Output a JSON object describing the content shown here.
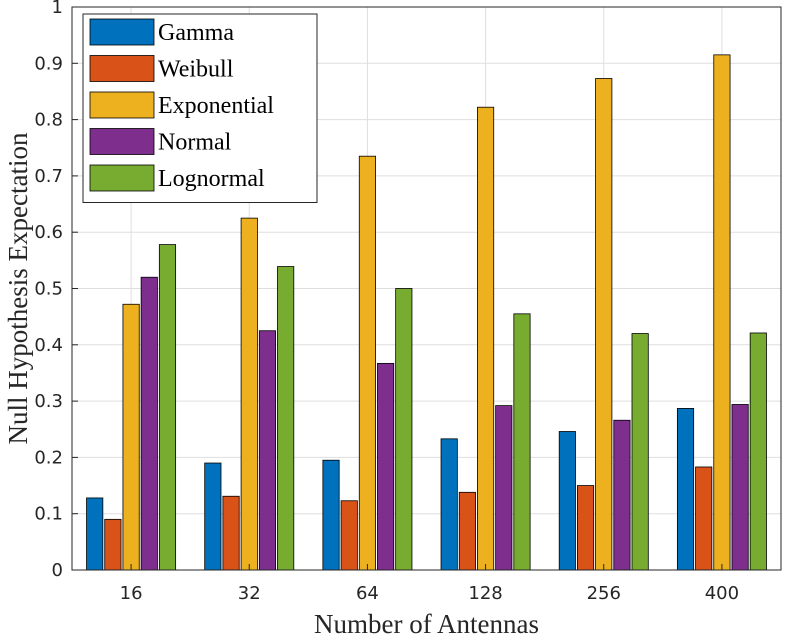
{
  "chart_data": {
    "type": "bar",
    "title": "",
    "xlabel": "Number of Antennas",
    "ylabel": "Null Hypothesis Expectation",
    "ylim": [
      0,
      1
    ],
    "yticks": [
      "0",
      "0.1",
      "0.2",
      "0.3",
      "0.4",
      "0.5",
      "0.6",
      "0.7",
      "0.8",
      "0.9",
      "1"
    ],
    "categories": [
      "16",
      "32",
      "64",
      "128",
      "256",
      "400"
    ],
    "grid": true,
    "legend_position": "top-left",
    "series": [
      {
        "name": "Gamma",
        "color": "#0072BD",
        "values": [
          0.128,
          0.19,
          0.195,
          0.233,
          0.246,
          0.287
        ]
      },
      {
        "name": "Weibull",
        "color": "#D95319",
        "values": [
          0.09,
          0.131,
          0.123,
          0.138,
          0.15,
          0.183
        ]
      },
      {
        "name": "Exponential",
        "color": "#EDB120",
        "values": [
          0.472,
          0.625,
          0.735,
          0.822,
          0.873,
          0.915
        ]
      },
      {
        "name": "Normal",
        "color": "#7E2F8E",
        "values": [
          0.52,
          0.425,
          0.367,
          0.292,
          0.266,
          0.294
        ]
      },
      {
        "name": "Lognormal",
        "color": "#77AC30",
        "values": [
          0.578,
          0.539,
          0.5,
          0.455,
          0.42,
          0.421
        ]
      }
    ]
  }
}
